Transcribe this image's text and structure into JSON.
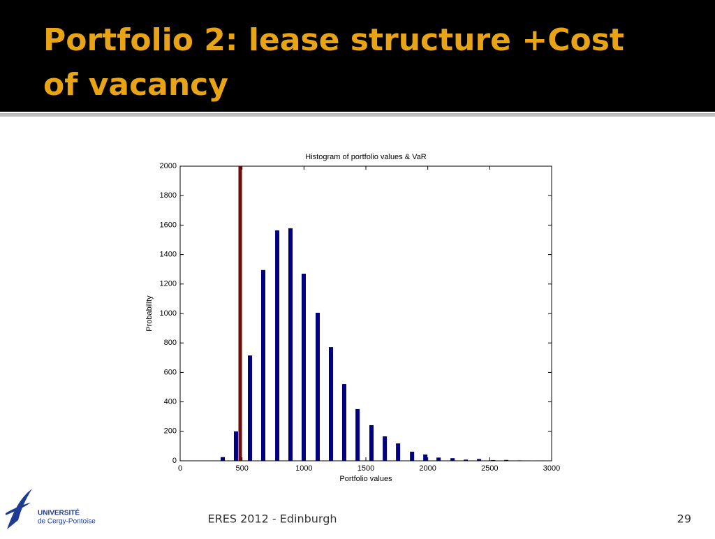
{
  "slide": {
    "title_line1": "Portfolio 2: lease structure +Cost",
    "title_line2": "of vacancy",
    "footer": "ERES 2012 - Edinburgh",
    "page_number": "29",
    "logo_line1": "UNIVERSITÉ",
    "logo_line2": "de Cergy-Pontoise"
  },
  "chart_data": {
    "type": "bar",
    "title": "Histogram of portfolio values & VaR",
    "x_label": "Portfolio values",
    "y_label": "Probability",
    "x": [
      344,
      451,
      564,
      671,
      784,
      891,
      998,
      1111,
      1218,
      1325,
      1433,
      1545,
      1653,
      1760,
      1873,
      1980,
      2087,
      2200,
      2307,
      2414,
      2527,
      2634,
      2741,
      2848,
      2961
    ],
    "values": [
      25,
      200,
      715,
      1295,
      1564,
      1578,
      1270,
      1005,
      772,
      521,
      351,
      242,
      166,
      118,
      62,
      43,
      22,
      18,
      8,
      12,
      5,
      6,
      3,
      2,
      2
    ],
    "color": "#00007f",
    "var_line": 485,
    "var_color": "#6e0b0b",
    "xlim": [
      0,
      3000
    ],
    "xticks": [
      0,
      500,
      1000,
      1500,
      2000,
      2500,
      3000
    ],
    "ylim": [
      0,
      2000
    ],
    "yticks": [
      0,
      200,
      400,
      600,
      800,
      1000,
      1200,
      1400,
      1600,
      1800,
      2000
    ]
  }
}
